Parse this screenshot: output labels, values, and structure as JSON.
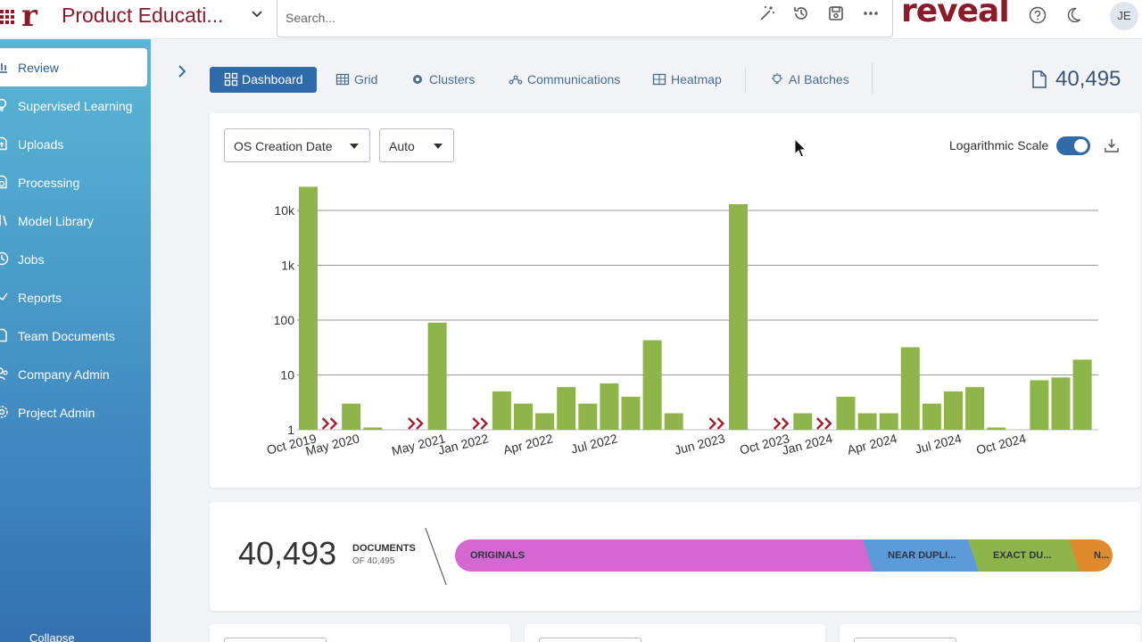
{
  "header": {
    "project_title": "Product Educati...",
    "search_placeholder": "Search...",
    "brand": "reveal",
    "avatar_initials": "JE"
  },
  "sidebar": {
    "items": [
      {
        "label": "Review",
        "icon": "bar-chart-icon",
        "active": true
      },
      {
        "label": "Supervised Learning",
        "icon": "bulb-icon"
      },
      {
        "label": "Uploads",
        "icon": "upload-doc-icon"
      },
      {
        "label": "Processing",
        "icon": "processing-icon"
      },
      {
        "label": "Model Library",
        "icon": "library-icon"
      },
      {
        "label": "Jobs",
        "icon": "clock-icon"
      },
      {
        "label": "Reports",
        "icon": "report-icon"
      },
      {
        "label": "Team Documents",
        "icon": "document-icon"
      },
      {
        "label": "Company Admin",
        "icon": "users-icon"
      },
      {
        "label": "Project Admin",
        "icon": "gear-icon"
      }
    ],
    "collapse_label": "Collapse"
  },
  "tabs": [
    {
      "label": "Dashboard",
      "icon": "dashboard-icon",
      "active": true
    },
    {
      "label": "Grid",
      "icon": "grid-icon"
    },
    {
      "label": "Clusters",
      "icon": "clusters-icon"
    },
    {
      "label": "Communications",
      "icon": "network-icon"
    },
    {
      "label": "Heatmap",
      "icon": "heatmap-icon"
    },
    {
      "label": "AI Batches",
      "icon": "ai-bulb-icon"
    }
  ],
  "document_total": "40,495",
  "chart_controls": {
    "date_field": "OS Creation Date",
    "interval": "Auto",
    "log_scale_label": "Logarithmic Scale",
    "log_scale_on": true
  },
  "chart_data": {
    "type": "bar",
    "title": "",
    "y_scale": "log",
    "ylim": [
      1,
      30000
    ],
    "y_ticks": [
      "1",
      "10",
      "100",
      "1k",
      "10k"
    ],
    "x_tick_labels": [
      "Oct 2019",
      "May 2020",
      "May 2021",
      "Jan 2022",
      "Apr 2022",
      "Jul 2022",
      "Jun 2023",
      "Oct 2023",
      "Jan 2024",
      "Apr 2024",
      "Jul 2024",
      "Oct 2024"
    ],
    "bar_color": "#8db54a",
    "gap_marker_color": "#a3202f",
    "bars": [
      {
        "slot": 0,
        "value": 27000
      },
      {
        "slot": 2,
        "value": 3
      },
      {
        "slot": 3,
        "value": 1.1
      },
      {
        "slot": 6,
        "value": 90
      },
      {
        "slot": 9,
        "value": 5
      },
      {
        "slot": 10,
        "value": 3
      },
      {
        "slot": 11,
        "value": 2
      },
      {
        "slot": 12,
        "value": 6
      },
      {
        "slot": 13,
        "value": 3
      },
      {
        "slot": 14,
        "value": 7
      },
      {
        "slot": 15,
        "value": 4
      },
      {
        "slot": 16,
        "value": 43
      },
      {
        "slot": 17,
        "value": 2
      },
      {
        "slot": 20,
        "value": 13000
      },
      {
        "slot": 23,
        "value": 2
      },
      {
        "slot": 25,
        "value": 4
      },
      {
        "slot": 26,
        "value": 2
      },
      {
        "slot": 27,
        "value": 2
      },
      {
        "slot": 28,
        "value": 32
      },
      {
        "slot": 29,
        "value": 3
      },
      {
        "slot": 30,
        "value": 5
      },
      {
        "slot": 31,
        "value": 6
      },
      {
        "slot": 32,
        "value": 1.1
      },
      {
        "slot": 34,
        "value": 8
      },
      {
        "slot": 35,
        "value": 9
      },
      {
        "slot": 36,
        "value": 19
      }
    ],
    "gap_markers": [
      {
        "slot": 1
      },
      {
        "slot": 5
      },
      {
        "slot": 8
      },
      {
        "slot": 19
      },
      {
        "slot": 22
      },
      {
        "slot": 24
      }
    ],
    "tick_label_slots": [
      0,
      2,
      6,
      8,
      11,
      14,
      19,
      22,
      24,
      27,
      30,
      33
    ]
  },
  "stats": {
    "count": "40,493",
    "label": "DOCUMENTS",
    "sublabel": "OF 40,495",
    "segments": [
      {
        "label": "ORIGINALS",
        "color": "#d467d0",
        "fraction": 0.62
      },
      {
        "label": "NEAR DUPLI...",
        "color": "#5b9bd9",
        "fraction": 0.16
      },
      {
        "label": "EXACT DU...",
        "color": "#8db54a",
        "fraction": 0.153
      },
      {
        "label": "N...",
        "color": "#e08a2e",
        "fraction": 0.067
      }
    ]
  }
}
